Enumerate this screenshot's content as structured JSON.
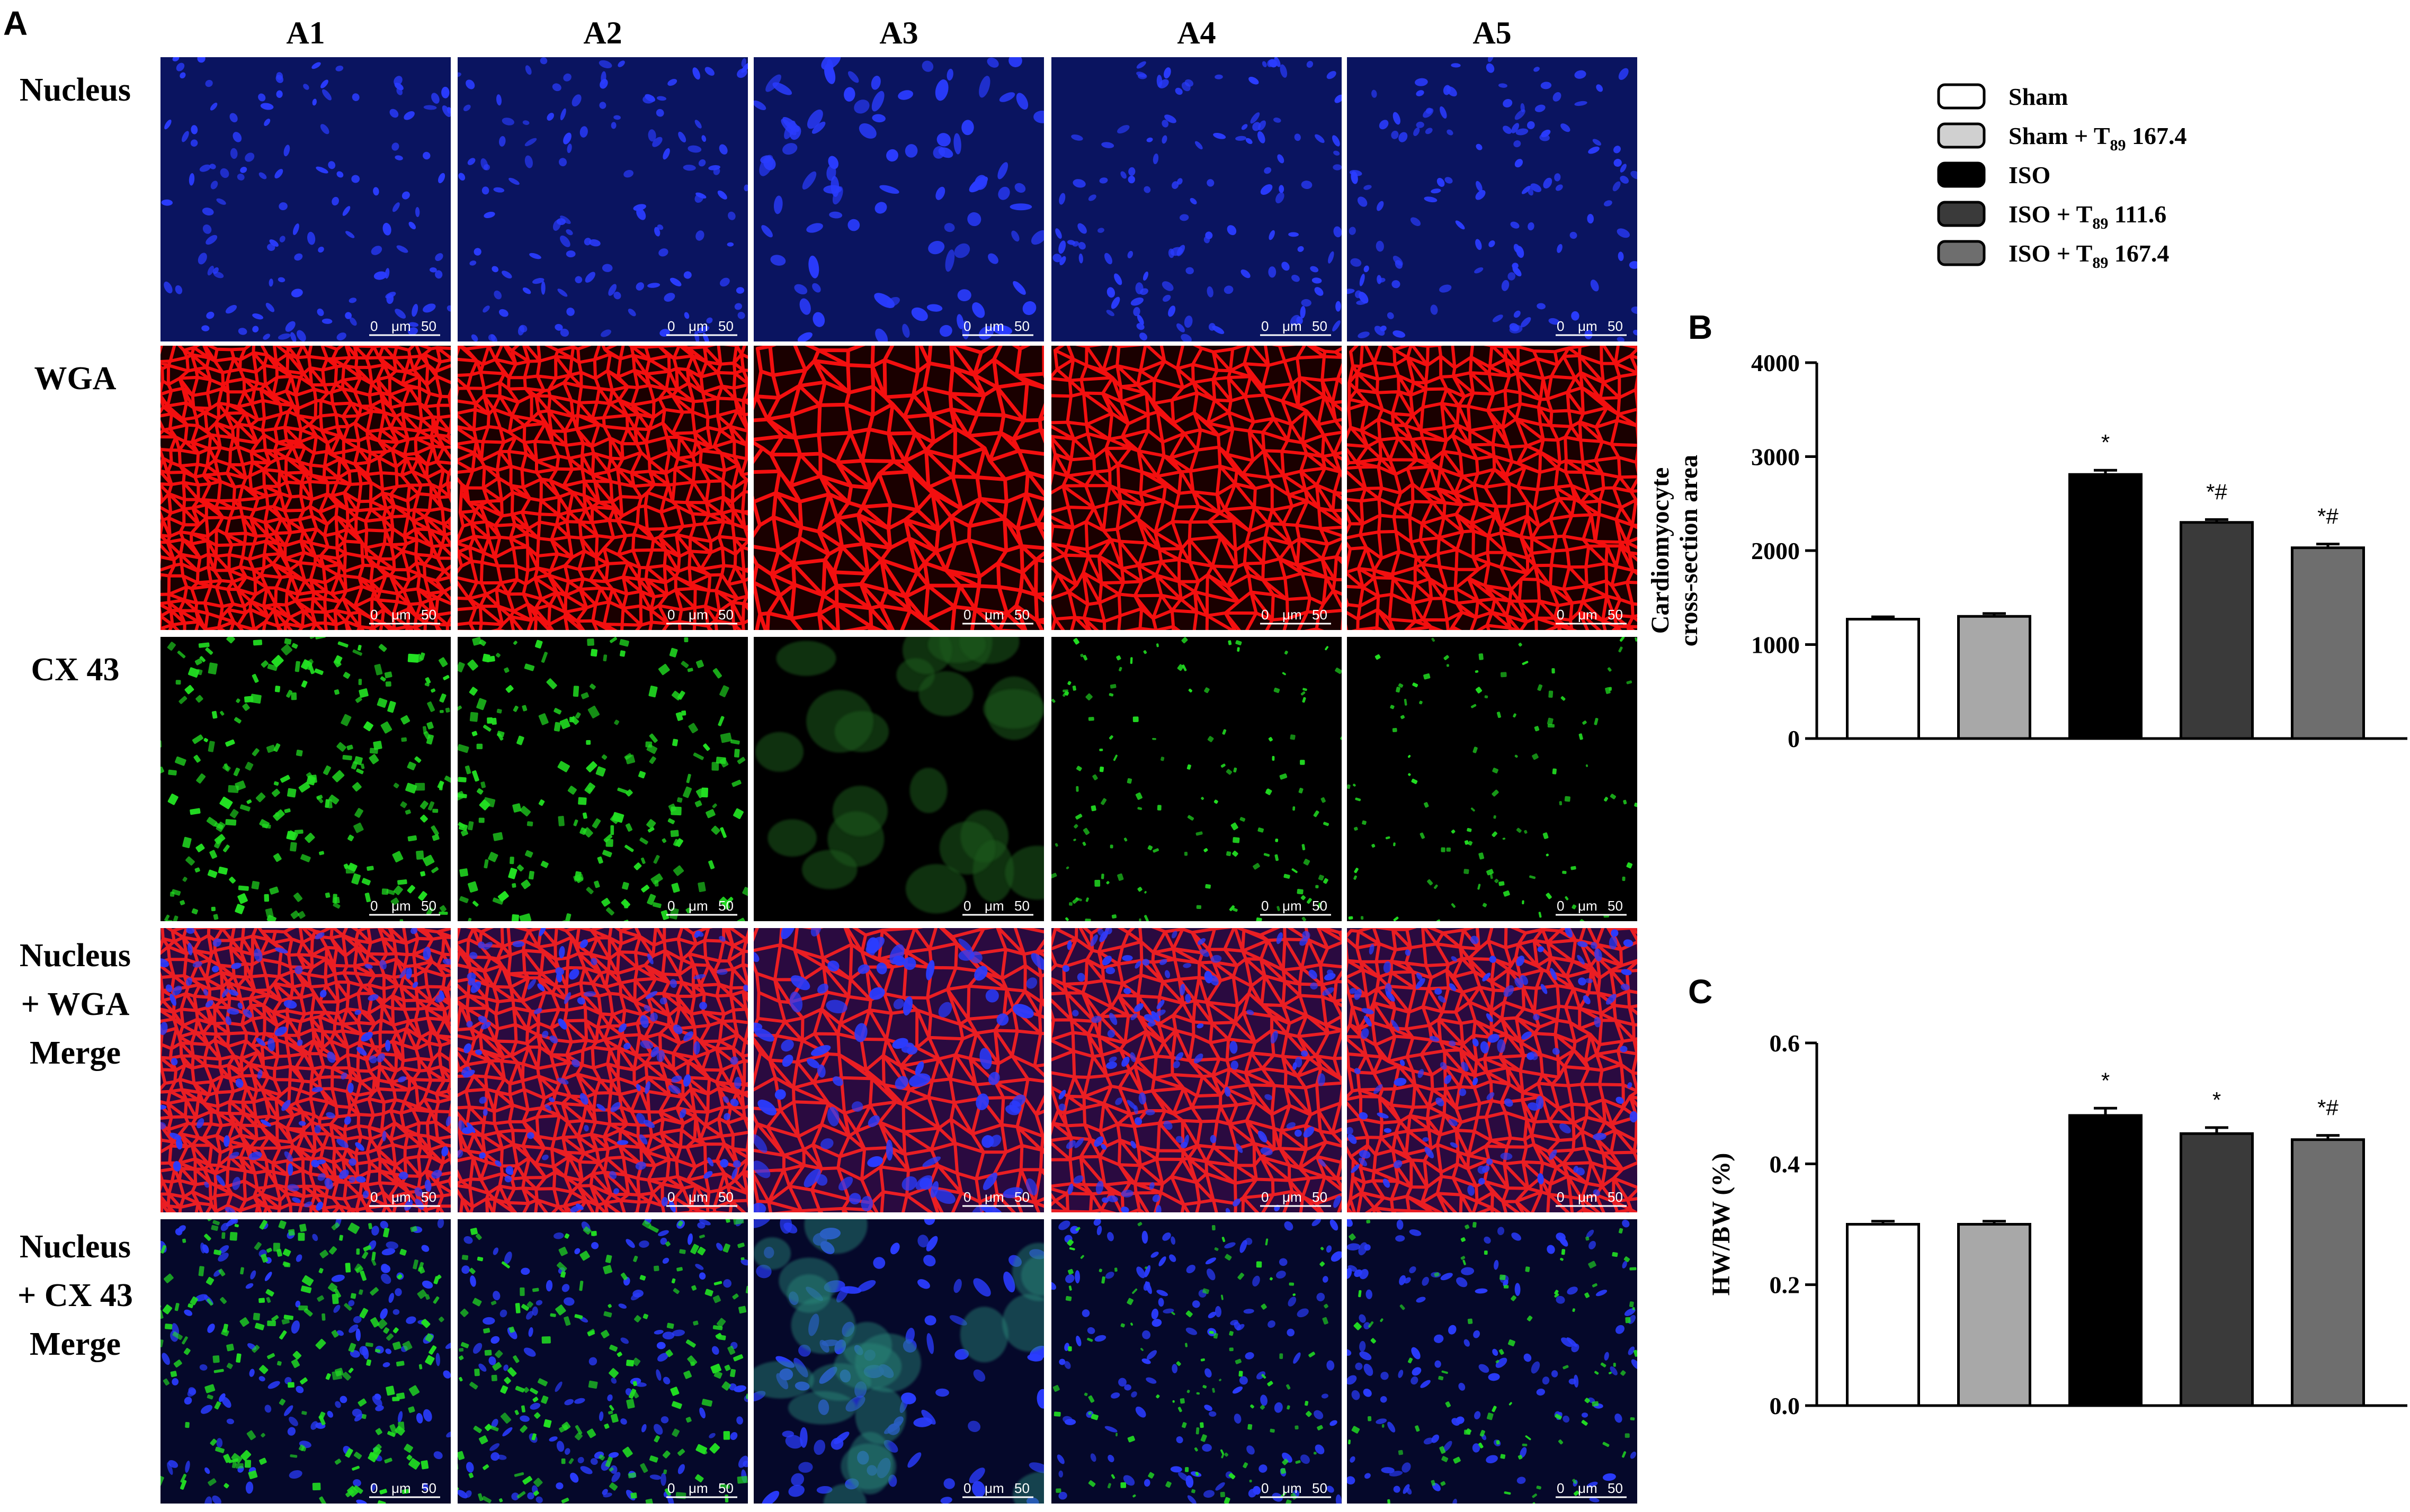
{
  "panel_a": {
    "letter": "A",
    "columns": [
      "A1",
      "A2",
      "A3",
      "A4",
      "A5"
    ],
    "rows": [
      {
        "label_lines": [
          "Nucleus"
        ],
        "stain": "nucleus",
        "colors": [
          "#0a1460",
          "#2a3cff"
        ]
      },
      {
        "label_lines": [
          "WGA"
        ],
        "stain": "wga",
        "colors": [
          "#1a0000",
          "#ff1010"
        ]
      },
      {
        "label_lines": [
          "CX 43"
        ],
        "stain": "cx43",
        "colors": [
          "#000000",
          "#22e022"
        ]
      },
      {
        "label_lines": [
          "Nucleus",
          "+ WGA",
          "Merge"
        ],
        "stain": "merge-wga",
        "colors": [
          "#2a0a40",
          "#ff2020"
        ]
      },
      {
        "label_lines": [
          "Nucleus",
          "+ CX 43",
          "Merge"
        ],
        "stain": "merge-cx43",
        "colors": [
          "#05082a",
          "#22e022"
        ]
      }
    ],
    "scale_bar": {
      "left": "0",
      "unit": "μm",
      "right": "50"
    },
    "colors": {
      "background": "#000000",
      "nucleus": "#2a3cff",
      "membrane": "#ff1010",
      "connexin": "#22e022"
    }
  },
  "legend": {
    "entries": [
      {
        "label": "Sham",
        "subscript": "",
        "dose": "",
        "color": "#ffffff"
      },
      {
        "label": "Sham + T",
        "subscript": "89",
        "dose": " 167.4",
        "color": "#d0d0d0"
      },
      {
        "label": "ISO",
        "subscript": "",
        "dose": "",
        "color": "#000000"
      },
      {
        "label": "ISO + T",
        "subscript": "89",
        "dose": " 111.6",
        "color": "#3a3a3a"
      },
      {
        "label": "ISO + T",
        "subscript": "89",
        "dose": " 167.4",
        "color": "#6e6e6e"
      }
    ]
  },
  "chart_data": [
    {
      "type": "bar",
      "panel": "B",
      "ylabel_lines": [
        "Cardiomyocyte",
        "cross-section area"
      ],
      "ylim": [
        0,
        4000
      ],
      "yticks": [
        "0",
        "1000",
        "2000",
        "3000",
        "4000"
      ],
      "ytick_values": [
        0,
        1000,
        2000,
        3000,
        4000
      ],
      "values": [
        1270,
        1300,
        2810,
        2300,
        2030
      ],
      "errors": [
        25,
        30,
        45,
        30,
        40
      ],
      "colors": [
        "#ffffff",
        "#a8a8a8",
        "#000000",
        "#3a3a3a",
        "#6e6e6e"
      ],
      "annotations": [
        "",
        "",
        "*",
        "*#",
        "*#"
      ]
    },
    {
      "type": "bar",
      "panel": "C",
      "ylabel": "HW/BW (%)",
      "ylim": [
        0,
        0.6
      ],
      "yticks": [
        "0.0",
        "0.2",
        "0.4",
        "0.6"
      ],
      "ytick_values": [
        0,
        0.2,
        0.4,
        0.6
      ],
      "values": [
        0.3,
        0.3,
        0.48,
        0.45,
        0.44
      ],
      "errors": [
        0.005,
        0.005,
        0.012,
        0.01,
        0.007
      ],
      "colors": [
        "#ffffff",
        "#a8a8a8",
        "#000000",
        "#3a3a3a",
        "#6e6e6e"
      ],
      "annotations": [
        "",
        "",
        "*",
        "*",
        "*#"
      ]
    }
  ]
}
